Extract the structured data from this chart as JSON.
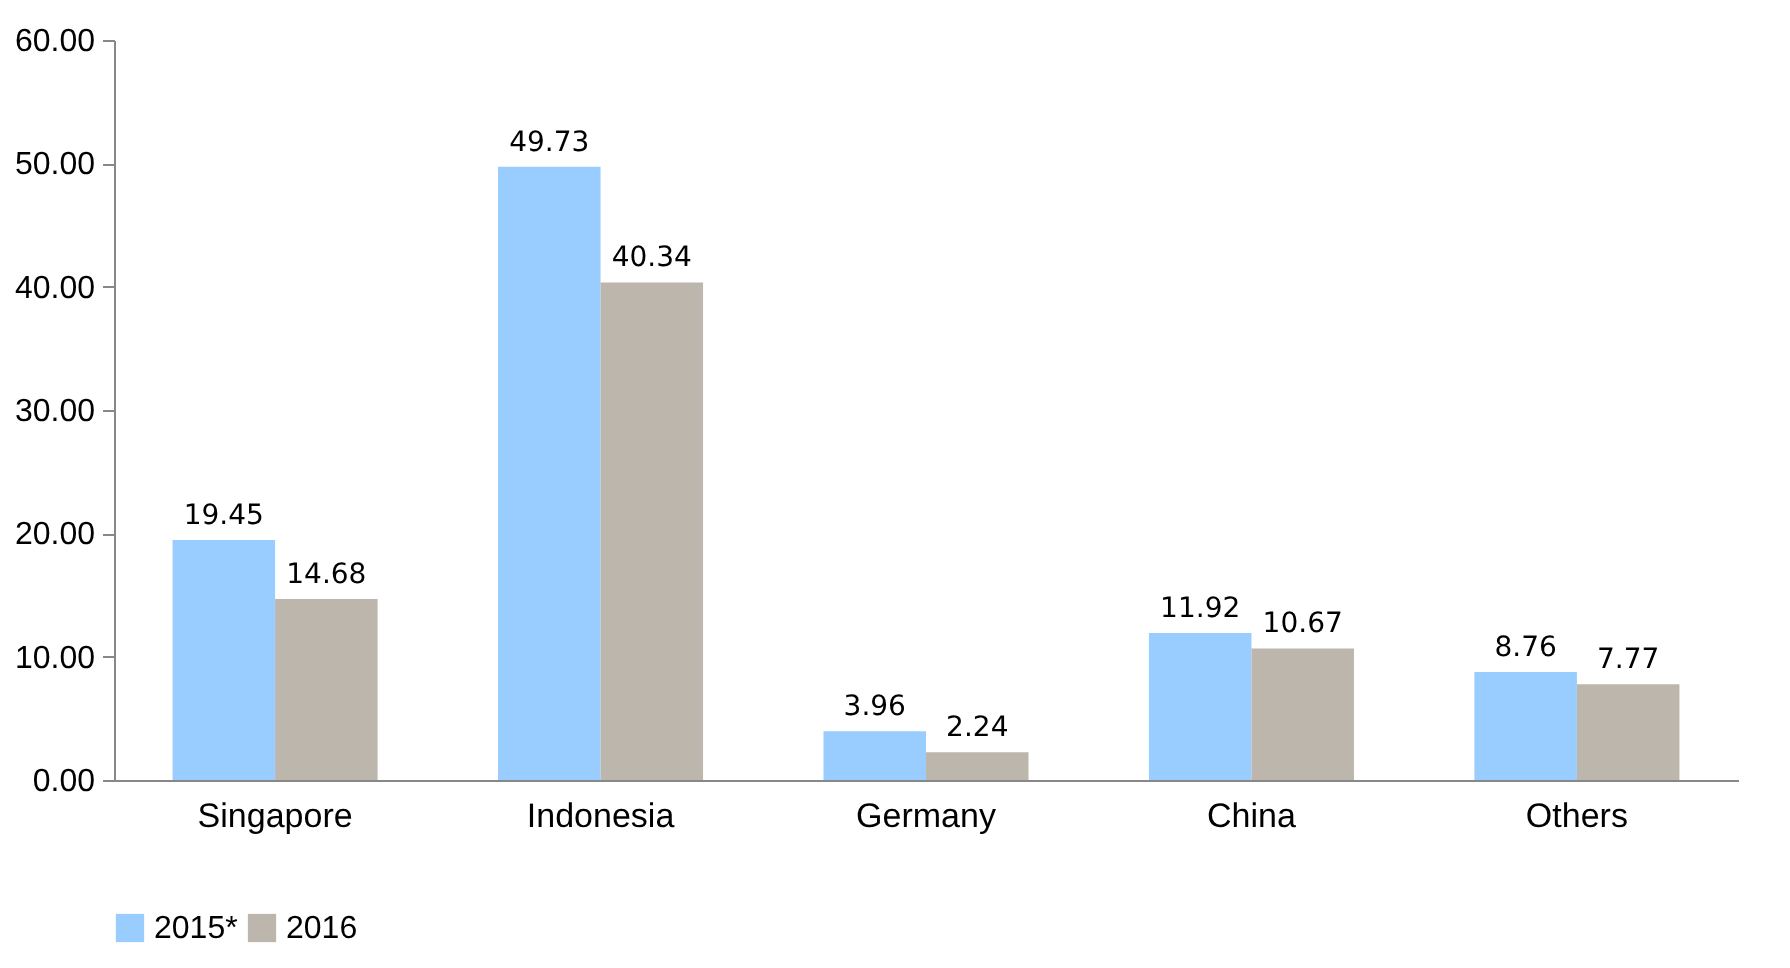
{
  "chart_data": {
    "type": "bar",
    "categories": [
      "Singapore",
      "Indonesia",
      "Germany",
      "China",
      "Others"
    ],
    "series": [
      {
        "name": "2015*",
        "color": "#99ccff",
        "values": [
          19.45,
          49.73,
          3.96,
          11.92,
          8.76
        ]
      },
      {
        "name": "2016",
        "color": "#bcb6ad",
        "values": [
          14.68,
          40.34,
          2.24,
          10.67,
          7.77
        ]
      }
    ],
    "ylim": [
      0,
      60
    ],
    "yticks": [
      {
        "value": 0,
        "label": "0.00"
      },
      {
        "value": 10,
        "label": "10.00"
      },
      {
        "value": 20,
        "label": "20.00"
      },
      {
        "value": 30,
        "label": "30.00"
      },
      {
        "value": 40,
        "label": "40.00"
      },
      {
        "value": 50,
        "label": "50.00"
      },
      {
        "value": 60,
        "label": "60.00"
      }
    ],
    "data_labels": true,
    "grid": false,
    "legend": "bottom"
  }
}
